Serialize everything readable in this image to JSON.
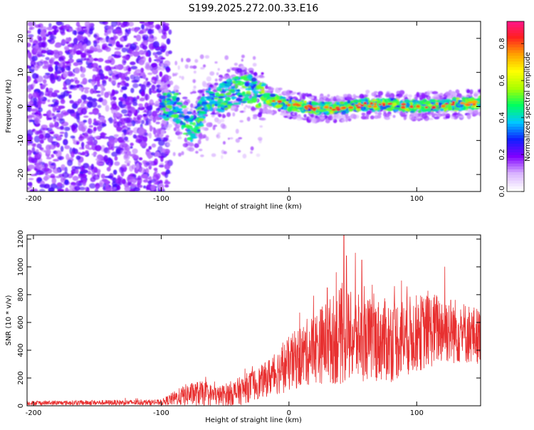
{
  "title": "S199.2025.272.00.33.E16",
  "chart_data": [
    {
      "type": "heatmap",
      "name": "spectrogram",
      "xlabel": "Height of straight line (km)",
      "ylabel": "Frequency (Hz)",
      "xlim": [
        -205,
        150
      ],
      "ylim": [
        -25,
        25
      ],
      "xticks": [
        -200,
        -100,
        0,
        100
      ],
      "yticks": [
        -20,
        -10,
        0,
        10,
        20
      ],
      "colorbar": {
        "label": "Normalized spectral amplitude",
        "range": [
          0.0,
          0.92
        ],
        "ticks": [
          0.0,
          0.2,
          0.4,
          0.6,
          0.8
        ],
        "tick_labels": [
          "0.0",
          "0.2",
          "0.4",
          "0.6",
          "0.8"
        ],
        "colors": [
          "#ffffff",
          "#d9b3ff",
          "#8000ff",
          "#1020ff",
          "#00c8ff",
          "#00ff60",
          "#aaff00",
          "#ffff00",
          "#ffa000",
          "#ff2020",
          "#ff1493"
        ]
      },
      "signal_track": [
        {
          "x": -100,
          "y": 0
        },
        {
          "x": -90,
          "y": 0.5
        },
        {
          "x": -80,
          "y": -5
        },
        {
          "x": -75,
          "y": -7
        },
        {
          "x": -65,
          "y": 1
        },
        {
          "x": -50,
          "y": 3
        },
        {
          "x": -40,
          "y": 5
        },
        {
          "x": -30,
          "y": 5
        },
        {
          "x": -20,
          "y": 2.5
        },
        {
          "x": 0,
          "y": 0.5
        },
        {
          "x": 20,
          "y": -0.5
        },
        {
          "x": 40,
          "y": -0.5
        },
        {
          "x": 60,
          "y": 0.5
        },
        {
          "x": 80,
          "y": 0.5
        },
        {
          "x": 100,
          "y": 0
        },
        {
          "x": 120,
          "y": 0.5
        },
        {
          "x": 150,
          "y": 1
        }
      ]
    },
    {
      "type": "line",
      "name": "snr",
      "xlabel": "Height of straight line (km)",
      "ylabel": "SNR (10 * v/v)",
      "xlim": [
        -205,
        150
      ],
      "ylim": [
        0,
        1230
      ],
      "xticks": [
        -200,
        -100,
        0,
        100
      ],
      "yticks": [
        0,
        200,
        400,
        600,
        800,
        1000,
        1200
      ],
      "color": "#e83030",
      "envelope": [
        {
          "x": -205,
          "base": 20,
          "amp": 15
        },
        {
          "x": -100,
          "base": 25,
          "amp": 20
        },
        {
          "x": -80,
          "base": 80,
          "amp": 80
        },
        {
          "x": -70,
          "base": 90,
          "amp": 90
        },
        {
          "x": -55,
          "base": 70,
          "amp": 70
        },
        {
          "x": -40,
          "base": 100,
          "amp": 100
        },
        {
          "x": -20,
          "base": 180,
          "amp": 120
        },
        {
          "x": 0,
          "base": 300,
          "amp": 200
        },
        {
          "x": 20,
          "base": 420,
          "amp": 260
        },
        {
          "x": 40,
          "base": 500,
          "amp": 350
        },
        {
          "x": 60,
          "base": 480,
          "amp": 300
        },
        {
          "x": 80,
          "base": 470,
          "amp": 300
        },
        {
          "x": 100,
          "base": 520,
          "amp": 280
        },
        {
          "x": 120,
          "base": 560,
          "amp": 260
        },
        {
          "x": 150,
          "base": 500,
          "amp": 200
        }
      ],
      "peaks": [
        {
          "x": 43,
          "y": 1230
        },
        {
          "x": 45,
          "y": 1080
        },
        {
          "x": 52,
          "y": 1100
        },
        {
          "x": 57,
          "y": 1050
        },
        {
          "x": 122,
          "y": 1000
        },
        {
          "x": 37,
          "y": 960
        },
        {
          "x": 30,
          "y": 850
        },
        {
          "x": 88,
          "y": 900
        }
      ]
    }
  ]
}
